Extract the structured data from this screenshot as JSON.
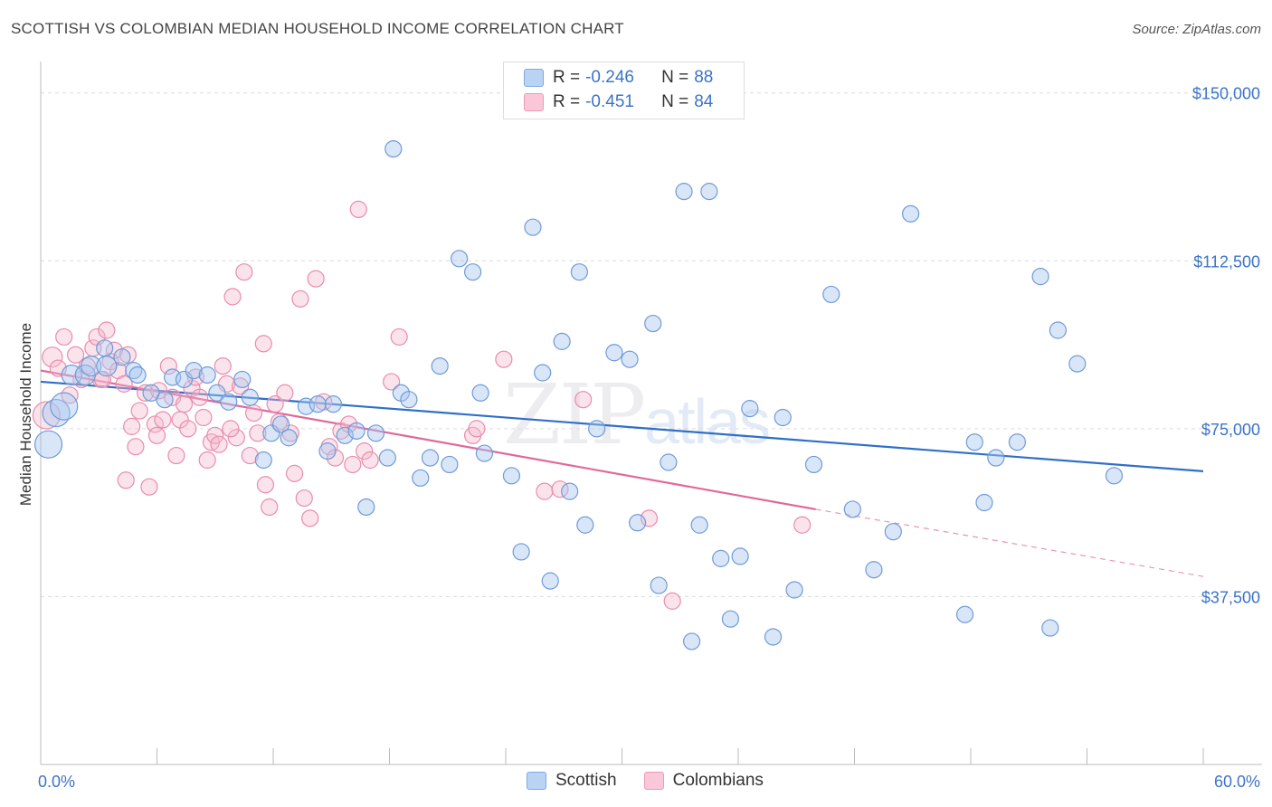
{
  "title": "SCOTTISH VS COLOMBIAN MEDIAN HOUSEHOLD INCOME CORRELATION CHART",
  "source": "Source: ZipAtlas.com",
  "watermark": {
    "zip": "ZIP",
    "atlas": "atlas"
  },
  "legend": {
    "scottish": {
      "r_label": "R =",
      "r_value": "-0.246",
      "n_label": "N =",
      "n_value": "88"
    },
    "colombians": {
      "r_label": "R =",
      "r_value": "-0.451",
      "n_label": "N =",
      "n_value": "84"
    }
  },
  "bottom_legend": {
    "scottish": "Scottish",
    "colombians": "Colombians"
  },
  "chart_data": {
    "type": "scatter",
    "title": "SCOTTISH VS COLOMBIAN MEDIAN HOUSEHOLD INCOME CORRELATION CHART",
    "xlabel": "",
    "ylabel": "Median Household Income",
    "xlim": [
      0,
      60
    ],
    "ylim": [
      0,
      155000
    ],
    "x_tick_labels": [
      "0.0%",
      "60.0%"
    ],
    "y_ticks": [
      37500,
      75000,
      112500,
      150000
    ],
    "y_tick_labels": [
      "$37,500",
      "$75,000",
      "$112,500",
      "$150,000"
    ],
    "grid": true,
    "legend_position": "top-center",
    "colors": {
      "scottish": "#3b74c9",
      "colombians": "#e0689a",
      "scottish_fill": "#a9c8ef",
      "colombians_fill": "#f6b9cd"
    },
    "series": [
      {
        "name": "Scottish",
        "trend": {
          "x0": 0,
          "y0": 85500,
          "x1": 60,
          "y1": 65500
        },
        "points": [
          [
            0.4,
            71500,
            2
          ],
          [
            0.8,
            78500,
            2
          ],
          [
            1.2,
            80000,
            2
          ],
          [
            1.6,
            87000,
            1
          ],
          [
            2.3,
            87000,
            1
          ],
          [
            2.6,
            89000,
            1
          ],
          [
            3.4,
            89000,
            1
          ],
          [
            3.3,
            93000,
            0
          ],
          [
            4.2,
            91000,
            0
          ],
          [
            4.8,
            88000,
            0
          ],
          [
            5.0,
            87000,
            0
          ],
          [
            5.7,
            83000,
            0
          ],
          [
            6.4,
            81500,
            0
          ],
          [
            6.8,
            86500,
            0
          ],
          [
            7.4,
            86000,
            0
          ],
          [
            7.9,
            88000,
            0
          ],
          [
            8.6,
            87000,
            0
          ],
          [
            9.1,
            83000,
            0
          ],
          [
            9.7,
            81000,
            0
          ],
          [
            10.4,
            86000,
            0
          ],
          [
            10.8,
            82000,
            0
          ],
          [
            11.5,
            68000,
            0
          ],
          [
            11.9,
            74000,
            0
          ],
          [
            12.4,
            76000,
            0
          ],
          [
            12.8,
            73000,
            0
          ],
          [
            13.7,
            80000,
            0
          ],
          [
            14.3,
            80500,
            0
          ],
          [
            14.8,
            70000,
            0
          ],
          [
            15.1,
            80500,
            0
          ],
          [
            15.7,
            73500,
            0
          ],
          [
            16.3,
            74500,
            0
          ],
          [
            16.8,
            57500,
            0
          ],
          [
            17.3,
            74000,
            0
          ],
          [
            17.9,
            68500,
            0
          ],
          [
            18.2,
            137500,
            0
          ],
          [
            18.6,
            83000,
            0
          ],
          [
            19.0,
            81500,
            0
          ],
          [
            19.6,
            64000,
            0
          ],
          [
            20.1,
            68500,
            0
          ],
          [
            20.6,
            89000,
            0
          ],
          [
            21.1,
            67000,
            0
          ],
          [
            21.6,
            113000,
            0
          ],
          [
            22.3,
            110000,
            0
          ],
          [
            22.7,
            83000,
            0
          ],
          [
            22.9,
            69500,
            0
          ],
          [
            24.3,
            64500,
            0
          ],
          [
            24.8,
            47500,
            0
          ],
          [
            25.4,
            120000,
            0
          ],
          [
            25.9,
            87500,
            0
          ],
          [
            26.3,
            41000,
            0
          ],
          [
            26.9,
            94500,
            0
          ],
          [
            27.3,
            61000,
            0
          ],
          [
            27.8,
            110000,
            0
          ],
          [
            28.1,
            53500,
            0
          ],
          [
            28.7,
            75000,
            0
          ],
          [
            29.6,
            92000,
            0
          ],
          [
            30.4,
            90500,
            0
          ],
          [
            30.8,
            54000,
            0
          ],
          [
            31.6,
            98500,
            0
          ],
          [
            31.9,
            40000,
            0
          ],
          [
            32.4,
            67500,
            0
          ],
          [
            33.2,
            128000,
            0
          ],
          [
            33.6,
            27500,
            0
          ],
          [
            34.0,
            53500,
            0
          ],
          [
            34.5,
            128000,
            0
          ],
          [
            35.1,
            46000,
            0
          ],
          [
            35.6,
            32500,
            0
          ],
          [
            36.1,
            46500,
            0
          ],
          [
            36.6,
            79500,
            0
          ],
          [
            37.8,
            28500,
            0
          ],
          [
            38.3,
            77500,
            0
          ],
          [
            38.9,
            39000,
            0
          ],
          [
            39.9,
            67000,
            0
          ],
          [
            40.8,
            105000,
            0
          ],
          [
            41.9,
            57000,
            0
          ],
          [
            43.0,
            43500,
            0
          ],
          [
            44.0,
            52000,
            0
          ],
          [
            44.9,
            123000,
            0
          ],
          [
            47.7,
            33500,
            0
          ],
          [
            48.2,
            72000,
            0
          ],
          [
            48.7,
            58500,
            0
          ],
          [
            49.3,
            68500,
            0
          ],
          [
            50.4,
            72000,
            0
          ],
          [
            52.1,
            30500,
            0
          ],
          [
            51.6,
            109000,
            0
          ],
          [
            52.5,
            97000,
            0
          ],
          [
            53.5,
            89500,
            0
          ],
          [
            55.4,
            64500,
            0
          ]
        ]
      },
      {
        "name": "Colombians",
        "trend": {
          "x0": 0,
          "y0": 88000,
          "x1": 40,
          "y1": 57000
        },
        "dashed_trend": {
          "x0": 40,
          "y0": 57000,
          "x1": 60,
          "y1": 42000
        },
        "points": [
          [
            0.3,
            78000,
            2
          ],
          [
            0.6,
            91000,
            1
          ],
          [
            0.9,
            88500,
            0
          ],
          [
            1.2,
            95500,
            0
          ],
          [
            1.5,
            82500,
            0
          ],
          [
            1.8,
            91500,
            0
          ],
          [
            2.1,
            86000,
            0
          ],
          [
            2.4,
            89000,
            0
          ],
          [
            2.7,
            93000,
            0
          ],
          [
            2.9,
            95500,
            0
          ],
          [
            3.1,
            86000,
            0
          ],
          [
            3.4,
            97000,
            0
          ],
          [
            3.6,
            90000,
            0
          ],
          [
            3.8,
            92500,
            0
          ],
          [
            4.0,
            88000,
            0
          ],
          [
            4.3,
            85000,
            0
          ],
          [
            4.5,
            91500,
            0
          ],
          [
            4.7,
            75500,
            0
          ],
          [
            4.9,
            71000,
            0
          ],
          [
            5.1,
            79000,
            0
          ],
          [
            5.4,
            83000,
            0
          ],
          [
            5.6,
            62000,
            0
          ],
          [
            5.9,
            76000,
            0
          ],
          [
            6.1,
            83500,
            0
          ],
          [
            6.3,
            77000,
            0
          ],
          [
            6.6,
            89000,
            0
          ],
          [
            6.8,
            82000,
            0
          ],
          [
            7.0,
            69000,
            0
          ],
          [
            7.2,
            77000,
            0
          ],
          [
            7.4,
            80500,
            0
          ],
          [
            7.6,
            75000,
            0
          ],
          [
            7.8,
            84000,
            0
          ],
          [
            8.0,
            86500,
            0
          ],
          [
            8.2,
            82000,
            0
          ],
          [
            8.4,
            77500,
            0
          ],
          [
            8.6,
            68000,
            0
          ],
          [
            8.8,
            72000,
            0
          ],
          [
            9.0,
            73500,
            0
          ],
          [
            9.2,
            71500,
            0
          ],
          [
            9.4,
            89000,
            0
          ],
          [
            9.6,
            85000,
            0
          ],
          [
            9.9,
            104500,
            0
          ],
          [
            10.1,
            73000,
            0
          ],
          [
            10.3,
            84500,
            0
          ],
          [
            10.5,
            110000,
            0
          ],
          [
            10.8,
            69000,
            0
          ],
          [
            11.0,
            78500,
            0
          ],
          [
            11.2,
            74000,
            0
          ],
          [
            11.5,
            94000,
            0
          ],
          [
            11.8,
            57500,
            0
          ],
          [
            12.1,
            80500,
            0
          ],
          [
            12.3,
            76500,
            0
          ],
          [
            12.6,
            83000,
            0
          ],
          [
            12.9,
            74000,
            0
          ],
          [
            13.1,
            65000,
            0
          ],
          [
            13.4,
            104000,
            0
          ],
          [
            13.6,
            59500,
            0
          ],
          [
            13.9,
            55000,
            0
          ],
          [
            14.2,
            108500,
            0
          ],
          [
            14.6,
            81000,
            0
          ],
          [
            14.9,
            71000,
            0
          ],
          [
            15.2,
            68500,
            0
          ],
          [
            15.5,
            74500,
            0
          ],
          [
            15.9,
            76000,
            0
          ],
          [
            16.1,
            67000,
            0
          ],
          [
            16.4,
            124000,
            0
          ],
          [
            16.7,
            70000,
            0
          ],
          [
            17.0,
            68000,
            0
          ],
          [
            18.1,
            85500,
            0
          ],
          [
            18.5,
            95500,
            0
          ],
          [
            22.3,
            73500,
            0
          ],
          [
            22.5,
            75000,
            0
          ],
          [
            23.9,
            90500,
            0
          ],
          [
            26.0,
            61000,
            0
          ],
          [
            26.8,
            61500,
            0
          ],
          [
            28.0,
            81500,
            0
          ],
          [
            31.4,
            55000,
            0
          ],
          [
            32.6,
            36500,
            0
          ],
          [
            39.3,
            53500,
            0
          ],
          [
            9.8,
            75000,
            0
          ],
          [
            6.0,
            73500,
            0
          ],
          [
            4.4,
            63500,
            0
          ],
          [
            11.6,
            62500,
            0
          ],
          [
            3.2,
            86000,
            0
          ]
        ]
      }
    ]
  }
}
